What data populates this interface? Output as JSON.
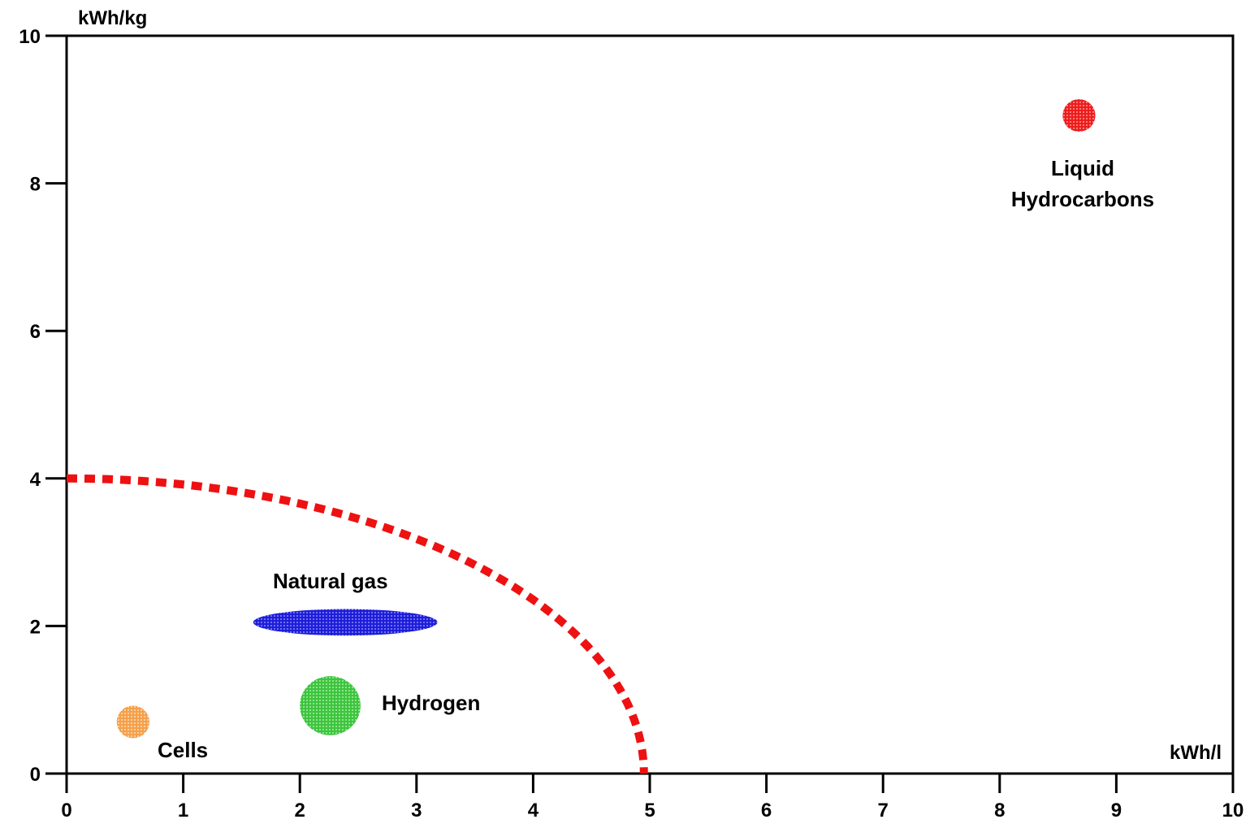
{
  "chart_data": {
    "type": "scatter",
    "title": "",
    "xlabel": "kWh/l",
    "ylabel": "kWh/kg",
    "xlim": [
      0,
      10
    ],
    "ylim": [
      0,
      10
    ],
    "xticks": [
      "0",
      "1",
      "2",
      "3",
      "4",
      "5",
      "6",
      "7",
      "8",
      "9",
      "10"
    ],
    "yticks": [
      "0",
      "2",
      "4",
      "6",
      "8",
      "10"
    ],
    "grid": false,
    "regions": [
      {
        "label": "Cells",
        "x": 0.57,
        "y": 0.7,
        "rx": 0.14,
        "ry": 0.22,
        "color": "#f5a04a"
      },
      {
        "label": "Natural gas",
        "x": 2.39,
        "y": 2.05,
        "rx": 0.79,
        "ry": 0.18,
        "color": "#1e1ed8"
      },
      {
        "label": "Hydrogen",
        "x": 2.26,
        "y": 0.92,
        "rx": 0.26,
        "ry": 0.4,
        "color": "#3ec43e"
      },
      {
        "label": "Liquid Hydrocarbons",
        "x": 8.68,
        "y": 8.92,
        "rx": 0.14,
        "ry": 0.22,
        "color": "#ee1c1c"
      }
    ],
    "boundary": {
      "x_intercept": 4.95,
      "y_intercept": 4.0,
      "color": "#ee1111",
      "style": "dashed"
    }
  },
  "labels": {
    "cells": "Cells",
    "natural_gas": "Natural gas",
    "hydrogen": "Hydrogen",
    "liquid_line1": "Liquid",
    "liquid_line2": "Hydrocarbons"
  }
}
